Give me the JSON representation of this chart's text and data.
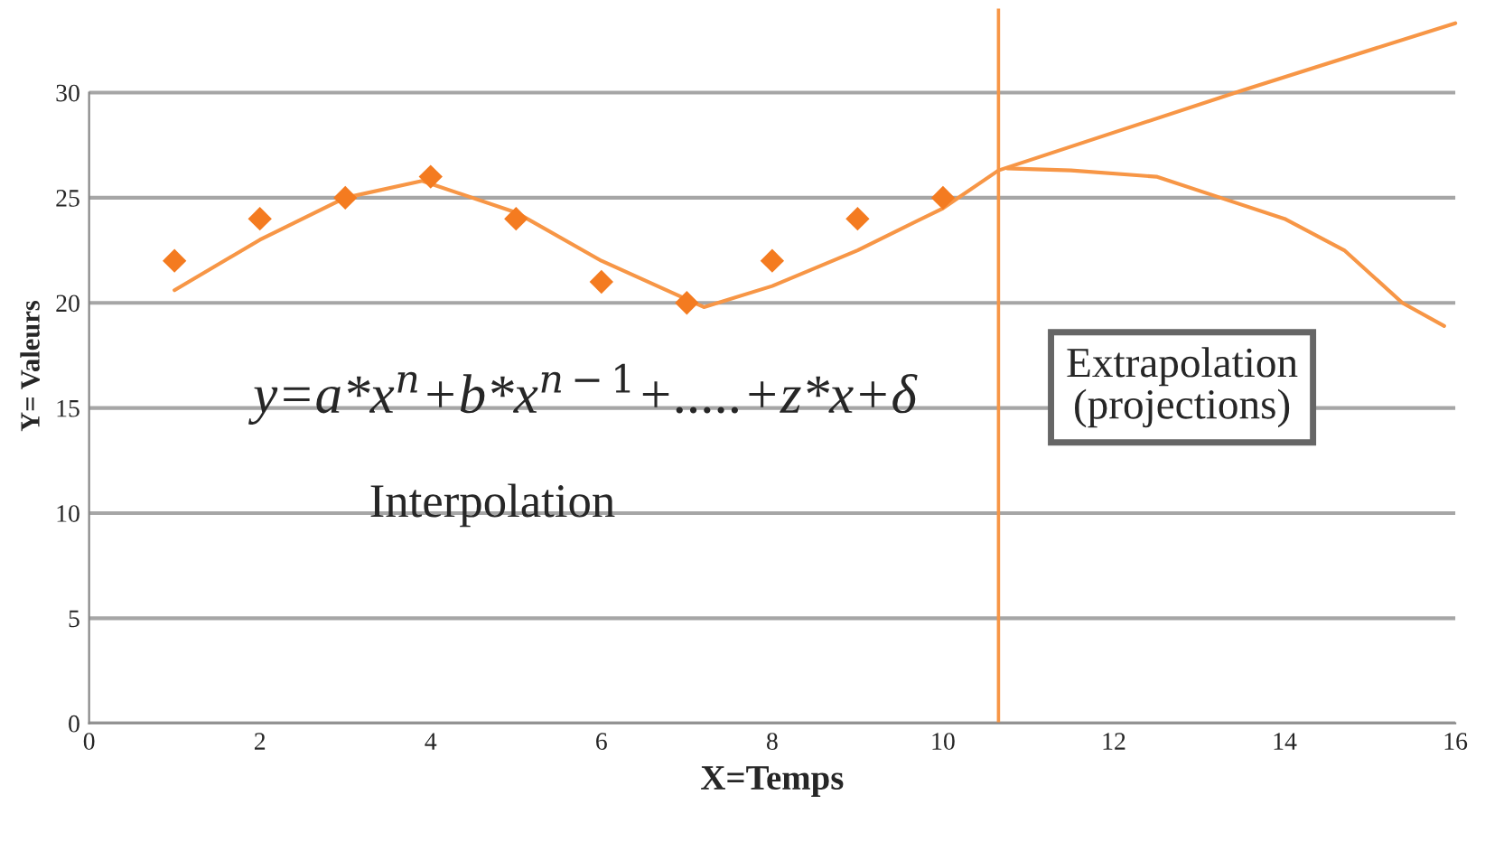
{
  "chart_data": {
    "type": "line",
    "xlabel": "X=Temps",
    "ylabel": "Y= Valeurs",
    "xlim": [
      0,
      16
    ],
    "xticks": [
      0,
      2,
      4,
      6,
      8,
      10,
      12,
      14,
      16
    ],
    "ylim": [
      0,
      34
    ],
    "yticks": [
      0,
      5,
      10,
      15,
      20,
      25,
      30
    ],
    "grid": "y",
    "legend": false,
    "series": [
      {
        "type": "scatter",
        "marker": "diamond",
        "color": "#f47b20",
        "x": [
          1,
          2,
          3,
          4,
          5,
          6,
          7,
          8,
          9,
          10
        ],
        "values": [
          22,
          24,
          25,
          26,
          24,
          21,
          20,
          22,
          24,
          25
        ]
      },
      {
        "color": "#f79646",
        "line_style": "solid",
        "marker": "none",
        "x": [
          1,
          2,
          3,
          3.9,
          5,
          6,
          7.2,
          8,
          9,
          10,
          10.65,
          13.5,
          16
        ],
        "values": [
          20.6,
          23,
          25,
          25.8,
          24.3,
          22,
          19.8,
          20.8,
          22.5,
          24.5,
          26.3,
          30.1,
          33.3
        ]
      },
      {
        "color": "#f79646",
        "line_style": "solid",
        "marker": "none",
        "x": [
          10.75,
          11.5,
          12.5,
          13.25,
          14,
          14.7,
          15.38,
          15.87
        ],
        "values": [
          26.4,
          26.3,
          26,
          25,
          24,
          22.5,
          20,
          18.9
        ]
      }
    ],
    "ref_lines": [
      {
        "axis": "x",
        "value": 10.65,
        "color": "#f79646"
      }
    ],
    "annotations": [
      "y=a*x$^{n}$+b*x$^{n−1}$+.....+z*x+δ",
      "Interpolation",
      "Extrapolation\n(projections)"
    ]
  }
}
